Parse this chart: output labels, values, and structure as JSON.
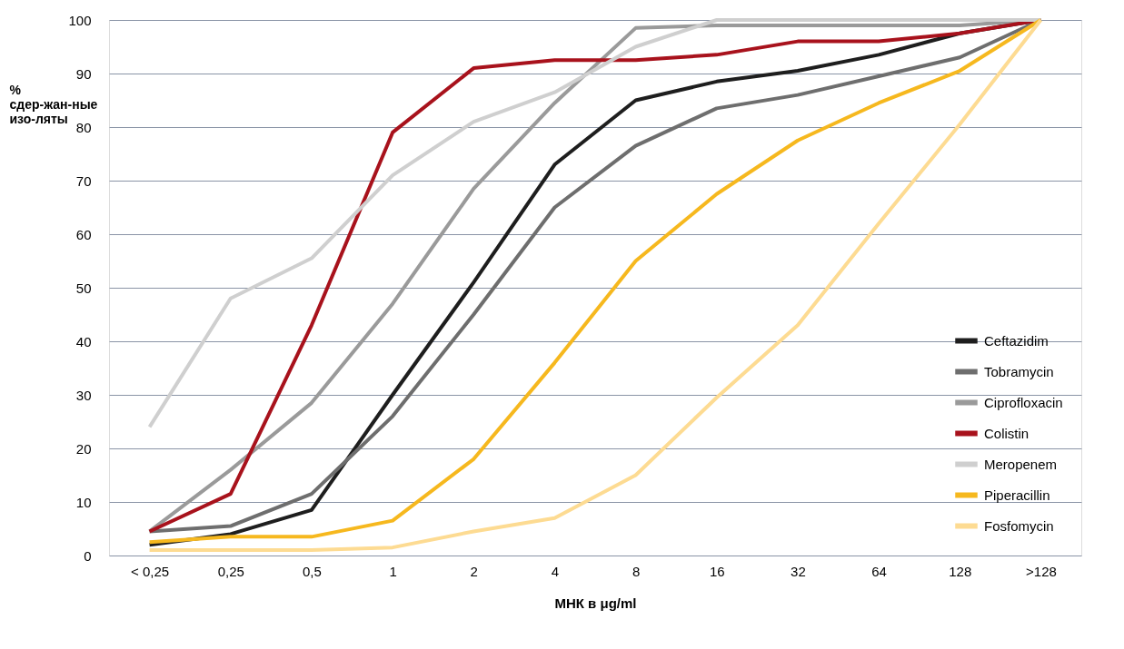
{
  "chart_data": {
    "type": "line",
    "xlabel": "МНК в μg/ml",
    "ylabel": "% сдер-жан-ные изо-ляты",
    "categories": [
      "< 0,25",
      "0,25",
      "0,5",
      "1",
      "2",
      "4",
      "8",
      "16",
      "32",
      "64",
      "128",
      ">128"
    ],
    "series": [
      {
        "name": "Ceftazidim",
        "color": "#1e1e1e",
        "values": [
          2,
          4,
          8.5,
          30,
          51,
          73,
          85,
          88.5,
          90.5,
          93.5,
          97.5,
          100
        ]
      },
      {
        "name": "Tobramycin",
        "color": "#6e6e6e",
        "values": [
          4.5,
          5.5,
          11.5,
          26,
          45,
          65,
          76.5,
          83.5,
          86,
          89.5,
          93,
          100
        ]
      },
      {
        "name": "Ciprofloxacin",
        "color": "#9a9a9a",
        "values": [
          4.5,
          16,
          28.5,
          47,
          68.5,
          84.5,
          98.5,
          99,
          99,
          99,
          99,
          100
        ]
      },
      {
        "name": "Colistin",
        "color": "#a8121c",
        "values": [
          4.5,
          11.5,
          43,
          79,
          91,
          92.5,
          92.5,
          93.5,
          96,
          96,
          97.5,
          100
        ]
      },
      {
        "name": "Meropenem",
        "color": "#cfcfcf",
        "values": [
          24,
          48,
          55.5,
          71,
          81,
          86.5,
          95,
          100,
          100,
          100,
          100,
          100
        ]
      },
      {
        "name": "Piperacillin",
        "color": "#f6b81e",
        "values": [
          2.5,
          3.5,
          3.5,
          6.5,
          18,
          36,
          55,
          67.5,
          77.5,
          84.5,
          90.5,
          100
        ]
      },
      {
        "name": "Fosfomycin",
        "color": "#fddb92",
        "values": [
          1,
          1,
          1,
          1.5,
          4.5,
          7,
          15,
          29.5,
          43,
          62,
          80.5,
          100
        ]
      }
    ],
    "ylim": [
      0,
      100
    ],
    "yticks": [
      0,
      10,
      20,
      30,
      40,
      50,
      60,
      70,
      80,
      90,
      100
    ],
    "grid": "y",
    "legend": "bottom right",
    "marker": "none",
    "line_style": "solid"
  }
}
